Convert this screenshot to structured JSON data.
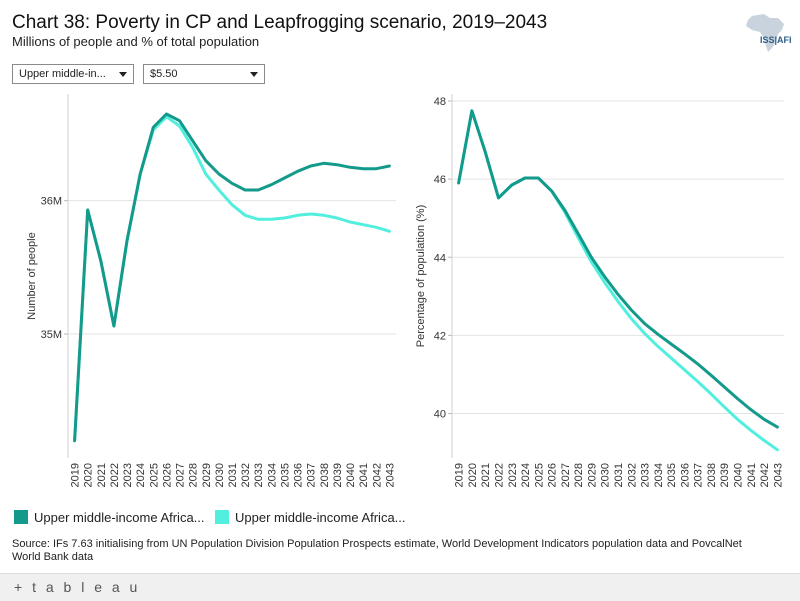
{
  "header": {
    "title": "Chart 38: Poverty in CP and Leapfrogging scenario, 2019–2043",
    "subtitle": "Millions of people and % of total population",
    "logo_text": "ISS|AFI"
  },
  "filters": {
    "region": "Upper middle-in...",
    "poverty_line": "$5.50"
  },
  "colors": {
    "series_cp": "#139a8a",
    "series_leap": "#52efdf",
    "grid": "#e3e3e3",
    "axis_text": "#333333"
  },
  "legend": {
    "item1": "Upper middle-income Africa...",
    "item2": "Upper middle-income Africa..."
  },
  "source": "Source: IFs 7.63 initialising from UN Population Division Population Prospects estimate, World Development Indicators population data and PovcalNet World Bank data",
  "footer": {
    "brand": "+ t a b l e a u"
  },
  "chart_data": [
    {
      "type": "line",
      "title": "Number of people",
      "xlabel": "",
      "ylabel": "Number of people",
      "x": [
        "2019",
        "2020",
        "2021",
        "2022",
        "2023",
        "2024",
        "2025",
        "2026",
        "2027",
        "2028",
        "2029",
        "2030",
        "2031",
        "2032",
        "2033",
        "2034",
        "2035",
        "2036",
        "2037",
        "2038",
        "2039",
        "2040",
        "2041",
        "2042",
        "2043"
      ],
      "ylim": [
        34.07,
        36.8
      ],
      "yticks": [
        35,
        36
      ],
      "ytick_labels": [
        "35M",
        "36M"
      ],
      "grid": true,
      "series": [
        {
          "name": "Upper middle-income Africa (Current Path)",
          "color_key": "series_cp",
          "values": [
            34.2,
            35.93,
            35.55,
            35.06,
            35.7,
            36.2,
            36.55,
            36.65,
            36.6,
            36.45,
            36.3,
            36.2,
            36.13,
            36.08,
            36.08,
            36.12,
            36.17,
            36.22,
            36.26,
            36.28,
            36.27,
            36.25,
            36.24,
            36.24,
            36.26
          ]
        },
        {
          "name": "Upper middle-income Africa (Leapfrogging)",
          "color_key": "series_leap",
          "values": [
            34.2,
            35.93,
            35.55,
            35.06,
            35.7,
            36.2,
            36.53,
            36.63,
            36.56,
            36.4,
            36.2,
            36.08,
            35.97,
            35.89,
            35.86,
            35.86,
            35.87,
            35.89,
            35.9,
            35.89,
            35.87,
            35.84,
            35.82,
            35.8,
            35.77
          ]
        }
      ]
    },
    {
      "type": "line",
      "title": "Percentage of population",
      "xlabel": "",
      "ylabel": "Percentage of population (%)",
      "x": [
        "2019",
        "2020",
        "2021",
        "2022",
        "2023",
        "2024",
        "2025",
        "2026",
        "2027",
        "2028",
        "2029",
        "2030",
        "2031",
        "2032",
        "2033",
        "2034",
        "2035",
        "2036",
        "2037",
        "2038",
        "2039",
        "2040",
        "2041",
        "2042",
        "2043"
      ],
      "ylim": [
        38.86,
        48.18
      ],
      "yticks": [
        40,
        42,
        44,
        46,
        48
      ],
      "ytick_labels": [
        "40",
        "42",
        "44",
        "46",
        "48"
      ],
      "grid": true,
      "series": [
        {
          "name": "Upper middle-income Africa (Current Path)",
          "color_key": "series_cp",
          "values": [
            45.9,
            47.75,
            46.7,
            45.52,
            45.85,
            46.03,
            46.03,
            45.7,
            45.2,
            44.6,
            44.0,
            43.5,
            43.05,
            42.65,
            42.3,
            42.03,
            41.78,
            41.53,
            41.27,
            40.98,
            40.68,
            40.38,
            40.1,
            39.85,
            39.65
          ]
        },
        {
          "name": "Upper middle-income Africa (Leapfrogging)",
          "color_key": "series_leap",
          "values": [
            45.9,
            47.75,
            46.7,
            45.52,
            45.85,
            46.03,
            46.03,
            45.7,
            45.15,
            44.5,
            43.88,
            43.35,
            42.87,
            42.43,
            42.05,
            41.72,
            41.42,
            41.12,
            40.82,
            40.5,
            40.17,
            39.85,
            39.57,
            39.31,
            39.07
          ]
        }
      ]
    }
  ]
}
